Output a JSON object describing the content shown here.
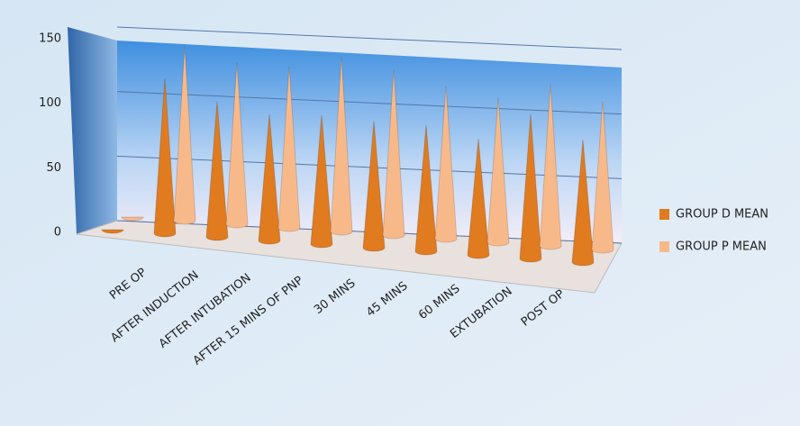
{
  "chart_data": {
    "type": "cone",
    "categories": [
      null,
      "PRE OP",
      "AFTER INDUCTION",
      "AFTER INTUBATION",
      "AFTER  15 MINS OF PNP",
      "30 MINS",
      "45 MINS",
      "60 MINS",
      "EXTUBATION",
      "POST OP"
    ],
    "series": [
      {
        "name": "GROUP D MEAN",
        "color": "#e07b20",
        "values": [
          0,
          120,
          105,
          98,
          100,
          98,
          98,
          90,
          112,
          95
        ]
      },
      {
        "name": "GROUP P MEAN",
        "color": "#f8b98a",
        "values": [
          0,
          135,
          125,
          125,
          135,
          128,
          118,
          112,
          125,
          115
        ]
      }
    ],
    "ylim": [
      0,
      150
    ],
    "yticks": [
      0,
      50,
      100,
      150
    ],
    "grid": true,
    "legend": "right"
  }
}
